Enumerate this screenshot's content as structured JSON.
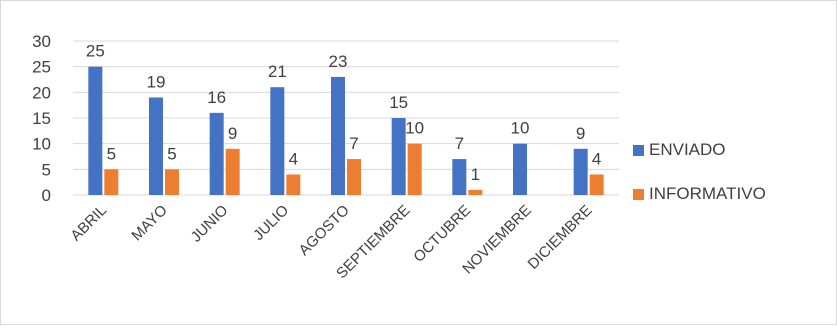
{
  "chart_data": {
    "type": "bar",
    "title": "",
    "xlabel": "",
    "ylabel": "",
    "ylim": [
      0,
      30
    ],
    "yticks": [
      0,
      5,
      10,
      15,
      20,
      25,
      30
    ],
    "grid": true,
    "legend_position": "right",
    "categories": [
      "ABRIL",
      "MAYO",
      "JUNIO",
      "JULIO",
      "AGOSTO",
      "SEPTIEMBRE",
      "OCTUBRE",
      "NOVIEMBRE",
      "DICIEMBRE"
    ],
    "series": [
      {
        "name": "ENVIADO",
        "color": "#4472c4",
        "values": [
          25,
          19,
          16,
          21,
          23,
          15,
          7,
          10,
          9
        ]
      },
      {
        "name": "INFORMATIVO",
        "color": "#ed7d31",
        "values": [
          5,
          5,
          9,
          4,
          7,
          10,
          1,
          null,
          4
        ]
      }
    ]
  }
}
